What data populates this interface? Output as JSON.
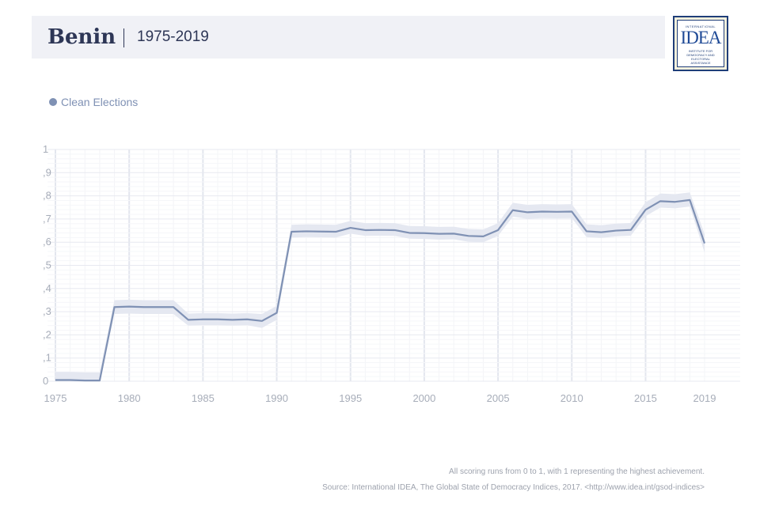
{
  "header": {
    "country": "Benin",
    "period": "1975-2019"
  },
  "logo": {
    "top_text": "INTERNATIONAL",
    "wordmark": "IDEA",
    "sub_lines": [
      "INSTITUTE FOR",
      "DEMOCRACY AND",
      "ELECTORAL",
      "ASSISTANCE"
    ]
  },
  "legend": {
    "label": "Clean Elections",
    "color": "#7f91b4"
  },
  "chart_data": {
    "type": "line",
    "title": "Benin 1975-2019",
    "xlabel": "",
    "ylabel": "",
    "xlim": [
      1975,
      2019
    ],
    "ylim": [
      0,
      1
    ],
    "grid": true,
    "x_tick_labels": [
      "1975",
      "1980",
      "1985",
      "1990",
      "1995",
      "2000",
      "2005",
      "2010",
      "2015",
      "2019"
    ],
    "y_tick_labels": [
      "0",
      ",1",
      ",2",
      ",3",
      ",4",
      ",5",
      ",6",
      ",7",
      ",8",
      ",9",
      "1"
    ],
    "series": [
      {
        "name": "Clean Elections",
        "color": "#7f91b4",
        "band_color": "#e5e8f1",
        "x": [
          1975,
          1976,
          1977,
          1978,
          1979,
          1980,
          1981,
          1982,
          1983,
          1984,
          1985,
          1986,
          1987,
          1988,
          1989,
          1990,
          1991,
          1992,
          1993,
          1994,
          1995,
          1996,
          1997,
          1998,
          1999,
          2000,
          2001,
          2002,
          2003,
          2004,
          2005,
          2006,
          2007,
          2008,
          2009,
          2010,
          2011,
          2012,
          2013,
          2014,
          2015,
          2016,
          2017,
          2018,
          2019
        ],
        "values": [
          0.005,
          0.005,
          0.003,
          0.003,
          0.32,
          0.322,
          0.32,
          0.32,
          0.32,
          0.265,
          0.267,
          0.267,
          0.265,
          0.267,
          0.26,
          0.295,
          0.645,
          0.647,
          0.646,
          0.645,
          0.662,
          0.652,
          0.653,
          0.652,
          0.64,
          0.639,
          0.636,
          0.637,
          0.627,
          0.625,
          0.652,
          0.738,
          0.729,
          0.732,
          0.731,
          0.732,
          0.647,
          0.643,
          0.65,
          0.653,
          0.74,
          0.777,
          0.774,
          0.782,
          0.595
        ],
        "lower": [
          0.0,
          0.0,
          0.0,
          0.0,
          0.29,
          0.292,
          0.29,
          0.29,
          0.29,
          0.24,
          0.242,
          0.242,
          0.24,
          0.242,
          0.23,
          0.265,
          0.62,
          0.622,
          0.621,
          0.62,
          0.637,
          0.627,
          0.628,
          0.627,
          0.615,
          0.614,
          0.611,
          0.612,
          0.602,
          0.6,
          0.627,
          0.71,
          0.701,
          0.704,
          0.703,
          0.704,
          0.622,
          0.618,
          0.625,
          0.628,
          0.712,
          0.749,
          0.746,
          0.754,
          0.555
        ],
        "upper": [
          0.04,
          0.04,
          0.038,
          0.038,
          0.35,
          0.352,
          0.35,
          0.35,
          0.35,
          0.292,
          0.294,
          0.294,
          0.292,
          0.294,
          0.29,
          0.325,
          0.675,
          0.677,
          0.676,
          0.675,
          0.692,
          0.682,
          0.683,
          0.682,
          0.67,
          0.669,
          0.666,
          0.667,
          0.657,
          0.655,
          0.682,
          0.77,
          0.761,
          0.764,
          0.763,
          0.764,
          0.677,
          0.673,
          0.68,
          0.683,
          0.772,
          0.81,
          0.807,
          0.815,
          0.635
        ]
      }
    ]
  },
  "footer": {
    "note": "All scoring runs from 0 to 1, with 1 representing the highest achievement.",
    "source": "Source: International IDEA, The Global State of Democracy Indices, 2017. <http://www.idea.int/gsod-indices>"
  }
}
